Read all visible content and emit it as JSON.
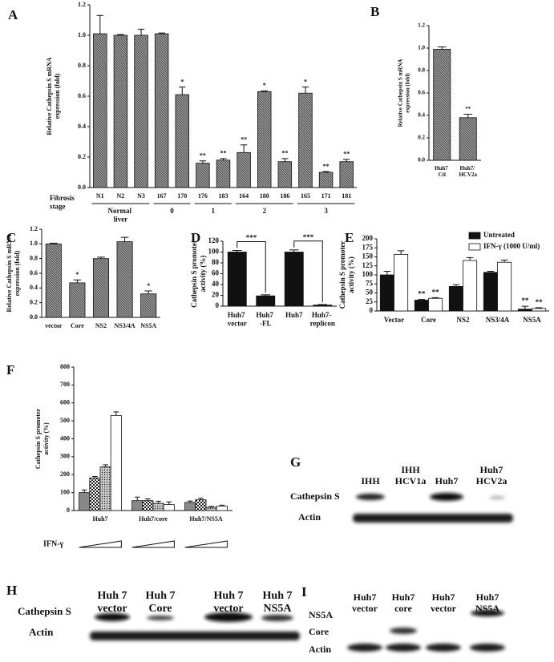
{
  "chart_data": [
    {
      "panel": "A",
      "type": "bar",
      "y_label": [
        "Relative Cathepsin S mRNA",
        "expression (fold)"
      ],
      "categories": [
        "N1",
        "N2",
        "N3",
        "167",
        "170",
        "176",
        "183",
        "164",
        "180",
        "186",
        "165",
        "171",
        "181"
      ],
      "values": [
        1.01,
        1.0,
        1.0,
        1.01,
        0.61,
        0.16,
        0.18,
        0.23,
        0.63,
        0.17,
        0.62,
        0.1,
        0.17
      ],
      "errors": [
        0.12,
        0.005,
        0.04,
        0.005,
        0.05,
        0.015,
        0.01,
        0.05,
        0.005,
        0.02,
        0.04,
        0.005,
        0.015
      ],
      "annotations": [
        null,
        null,
        null,
        null,
        "*",
        "**",
        "**",
        "**",
        "*",
        "**",
        "*",
        "**",
        "**"
      ],
      "category_groups": [
        "Normal liver",
        "Normal liver",
        "Normal liver",
        "0",
        "0",
        "1",
        "1",
        "2",
        "2",
        "2",
        "3",
        "3",
        "3"
      ],
      "group_title": "Fibrosis stage",
      "fill": "hatch",
      "ylim": [
        0,
        1.2
      ],
      "yticks": [
        {
          "value": 0,
          "label": "0.0"
        },
        0.2,
        0.4,
        0.6,
        0.8,
        {
          "value": 1,
          "label": "1.0"
        },
        1.2
      ]
    },
    {
      "panel": "B",
      "type": "bar",
      "y_label": [
        "Relative Cathepsin S mRNA",
        "expression (fold)"
      ],
      "categories": [
        "Huh7 Ctl",
        "Huh7/ HCV2a"
      ],
      "values": [
        0.99,
        0.38
      ],
      "errors": [
        0.02,
        0.03
      ],
      "annotations": [
        null,
        "**"
      ],
      "fill": "hatch",
      "ylim": [
        0,
        1.2
      ],
      "yticks": [
        {
          "value": 0,
          "label": "0.0"
        },
        0.2,
        0.4,
        0.6,
        0.8,
        {
          "value": 1,
          "label": "1.0"
        },
        1.2
      ]
    },
    {
      "panel": "C",
      "type": "bar",
      "y_label": [
        "Relative Cathepsin S mRNA",
        "expression (fold)"
      ],
      "categories": [
        "vector",
        "Core",
        "NS2",
        "NS3/4A",
        "NS5A"
      ],
      "values": [
        1.0,
        0.47,
        0.8,
        1.03,
        0.32
      ],
      "errors": [
        0.01,
        0.04,
        0.02,
        0.06,
        0.04
      ],
      "annotations": [
        null,
        "*",
        null,
        null,
        "*"
      ],
      "fill": "hatch",
      "ylim": [
        0,
        1.2
      ],
      "yticks": [
        {
          "value": 0,
          "label": "0.0"
        },
        0.2,
        0.4,
        0.6,
        0.8,
        {
          "value": 1,
          "label": "1.0"
        },
        1.2
      ]
    },
    {
      "panel": "D",
      "type": "bar",
      "y_label": [
        "Cathepsin S promoter",
        "activity (%)"
      ],
      "categories": [
        "Huh7 vector",
        "Huh7 -FL",
        "Huh7",
        "Huh7- replicon"
      ],
      "values": [
        100,
        19,
        100,
        2
      ],
      "errors": [
        3,
        2,
        4,
        1
      ],
      "bracket_labels": [
        "***",
        null,
        "***"
      ],
      "fill": "#111111",
      "ylim": [
        0,
        120
      ],
      "yticks": [
        0,
        20,
        40,
        60,
        80,
        100,
        120
      ]
    },
    {
      "panel": "E",
      "type": "bar",
      "y_label": [
        "Cathepsin S promoter",
        "activity (%)"
      ],
      "categories": [
        "Vector",
        "Core",
        "NS2",
        "NS3/4A",
        "NS5A"
      ],
      "legend": "top-right",
      "series": [
        {
          "name": "Untreated",
          "fill": "#111111",
          "values": [
            100,
            30,
            68,
            107,
            5
          ],
          "errors": [
            10,
            2,
            5,
            3,
            8
          ],
          "annotations": [
            null,
            "**",
            null,
            null,
            "**"
          ]
        },
        {
          "name": "IFN-γ (1000 U/ml)",
          "fill": "#ffffff",
          "values": [
            157,
            35,
            140,
            135,
            7
          ],
          "errors": [
            10,
            2,
            8,
            6,
            2
          ],
          "annotations": [
            null,
            "**",
            null,
            null,
            "**"
          ]
        }
      ],
      "ylim": [
        0,
        200
      ],
      "yticks": [
        0,
        25,
        50,
        75,
        100,
        125,
        150,
        175,
        200
      ]
    },
    {
      "panel": "F",
      "type": "bar",
      "y_label": [
        "Cathepsin S promoter",
        "activity (%)"
      ],
      "categories": [
        "Huh7",
        "Huh7/core",
        "Huh7/NS5A"
      ],
      "dose_label": "IFN-γ",
      "series": [
        {
          "fill": "#888888",
          "values": [
            100,
            55,
            45
          ],
          "errors": [
            15,
            20,
            8
          ]
        },
        {
          "fill": "checker",
          "values": [
            182,
            55,
            60
          ],
          "errors": [
            8,
            10,
            8
          ]
        },
        {
          "fill": "dots",
          "values": [
            243,
            40,
            18
          ],
          "errors": [
            12,
            12,
            5
          ]
        },
        {
          "fill": "#ffffff",
          "values": [
            530,
            33,
            25
          ],
          "errors": [
            20,
            15,
            5
          ]
        }
      ],
      "ylim": [
        0,
        800
      ],
      "yticks": [
        0,
        100,
        200,
        300,
        400,
        500,
        600,
        700,
        800
      ]
    }
  ],
  "blots": [
    {
      "panel": "G",
      "lanes": [
        [
          "IHH"
        ],
        [
          "IHH",
          "HCV1a"
        ],
        [
          "Huh7"
        ],
        [
          "Huh7",
          "HCV2a"
        ]
      ],
      "rows": [
        "Cathepsin S",
        "Actin"
      ]
    },
    {
      "panel": "H",
      "lanes": [
        [
          "Huh 7",
          "vector"
        ],
        [
          "Huh 7",
          "Core"
        ],
        [
          "Huh 7",
          "vector"
        ],
        [
          "Huh 7",
          "NS5A"
        ]
      ],
      "rows": [
        "Cathepsin S",
        "Actin"
      ]
    },
    {
      "panel": "I",
      "lanes": [
        [
          "Huh7",
          "vector"
        ],
        [
          "Huh7",
          "core"
        ],
        [
          "Huh7",
          "vector"
        ],
        [
          "Huh7",
          "NS5A"
        ]
      ],
      "rows": [
        "NS5A",
        "Core",
        "Actin"
      ]
    }
  ]
}
